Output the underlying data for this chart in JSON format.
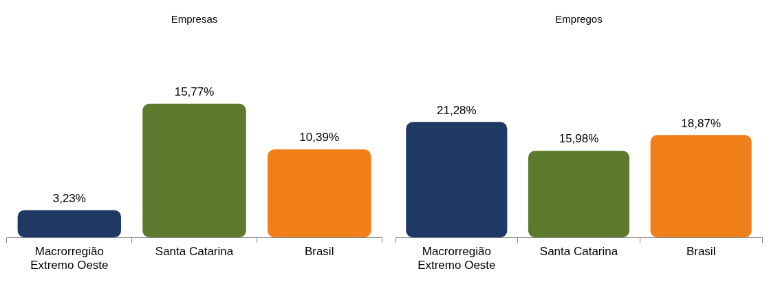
{
  "chart_data": [
    {
      "type": "bar",
      "title": "Empresas",
      "categories": [
        "Macrorregião Extremo Oeste",
        "Santa Catarina",
        "Brasil"
      ],
      "values": [
        3.23,
        15.77,
        10.39
      ],
      "colors": [
        "#1f3864",
        "#5e7a2e",
        "#f07f1a"
      ],
      "value_labels": [
        "3,23%",
        "15,77%",
        "10,39%"
      ]
    },
    {
      "type": "bar",
      "title": "Empregos",
      "categories": [
        "Macrorregião Extremo Oeste",
        "Santa Catarina",
        "Brasil"
      ],
      "values": [
        21.28,
        15.98,
        18.87
      ],
      "colors": [
        "#1f3864",
        "#5e7a2e",
        "#f07f1a"
      ],
      "value_labels": [
        "21,28%",
        "15,98%",
        "18,87%"
      ]
    }
  ]
}
